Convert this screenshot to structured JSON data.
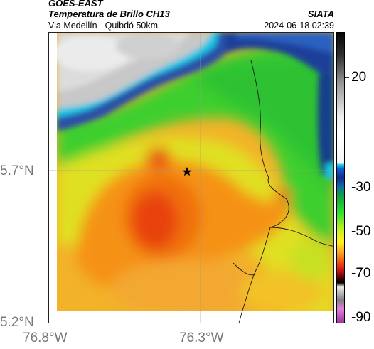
{
  "header": {
    "satellite": "GOES-EAST",
    "product": "Temperatura de Brillo CH13",
    "organization": "SIATA",
    "region": "Via Medellín - Quibdó 50km",
    "timestamp": "2024-06-18 02:39"
  },
  "axes": {
    "lat_ticks": [
      "5.7°N",
      "5.2°N"
    ],
    "lon_ticks": [
      "76.8°W",
      "76.3°W"
    ]
  },
  "colorbar": {
    "ticks": [
      "20",
      "-30",
      "-50",
      "-70",
      "-90"
    ]
  },
  "marker": {
    "icon": "star-icon"
  }
}
